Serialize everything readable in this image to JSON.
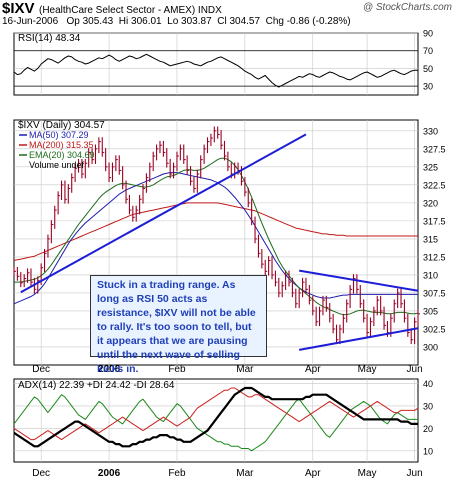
{
  "header": {
    "symbol": "$IXV",
    "name": "(HealthCare Select Sector - AMEX)  INDX",
    "source": "@ StockCharts.com",
    "date": "16-Jun-2006",
    "open": "Op 305.43",
    "high": "Hi 306.01",
    "low": "Lo 303.87",
    "close": "Cl 304.57",
    "change": "Chg -0.86 (-0.28%)"
  },
  "colors": {
    "grid": "#c8c8c8",
    "trend": "#1d1dd8",
    "ma50": "#1d1db0",
    "ma200": "#c01818",
    "ema20": "#1d6b1d",
    "price": "#990022",
    "pdi": "#1d8a1d",
    "mdi": "#cc2222"
  },
  "chart_data": [
    {
      "type": "line",
      "title": "RSI(14) 48.34",
      "ylim": [
        20,
        90
      ],
      "ticks": [
        90,
        70,
        50,
        30
      ],
      "levels": [
        70,
        30
      ],
      "series": [
        {
          "name": "RSI(14) 48.34",
          "values": [
            46,
            43,
            44,
            48,
            51,
            49,
            47,
            50,
            55,
            58,
            61,
            60,
            58,
            56,
            59,
            62,
            64,
            63,
            60,
            58,
            57,
            55,
            56,
            58,
            60,
            62,
            61,
            63,
            65,
            63,
            60,
            58,
            60,
            62,
            64,
            63,
            61,
            62,
            64,
            66,
            64,
            62,
            60,
            58,
            57,
            55,
            53,
            54,
            55,
            56,
            57,
            58,
            57,
            55,
            54,
            53,
            55,
            57,
            58,
            60,
            62,
            63,
            61,
            59,
            57,
            55,
            53,
            50,
            47,
            45,
            43,
            40,
            38,
            40,
            42,
            38,
            34,
            31,
            29,
            31,
            33,
            35,
            37,
            39,
            41,
            40,
            42,
            44,
            43,
            41,
            40,
            42,
            44,
            46,
            45,
            43,
            41,
            40,
            38,
            37,
            39,
            41,
            43,
            45,
            46,
            44,
            42,
            40,
            41,
            43,
            45,
            47,
            48,
            46,
            44,
            43,
            45,
            47,
            48,
            48
          ]
        }
      ]
    },
    {
      "type": "line",
      "title": "$IXV (Daily) 304.57",
      "ylim": [
        297.5,
        331.5
      ],
      "ticks": [
        330,
        327.5,
        325,
        322.5,
        320,
        317.5,
        315,
        312.5,
        310,
        307.5,
        305,
        302.5,
        300
      ],
      "x_labels": [
        "Dec",
        "2006",
        "Feb",
        "Mar",
        "Apr",
        "May",
        "Jun"
      ],
      "series": [
        {
          "name": "$IXV (Daily) 304.57",
          "values": [
            310.5,
            309.8,
            308.9,
            309.5,
            310.3,
            309.0,
            308.0,
            309.2,
            311.0,
            313.0,
            315.0,
            317.0,
            319.0,
            321.0,
            322.5,
            320.5,
            322.0,
            323.5,
            324.8,
            325.5,
            324.0,
            325.5,
            327.0,
            326.0,
            327.5,
            328.5,
            327.0,
            325.0,
            323.5,
            325.0,
            326.0,
            324.5,
            322.5,
            320.5,
            319.0,
            318.0,
            319.0,
            320.5,
            322.0,
            323.5,
            325.0,
            326.5,
            327.5,
            328.0,
            327.0,
            325.5,
            324.0,
            325.0,
            326.5,
            327.5,
            326.0,
            324.5,
            323.0,
            322.0,
            324.0,
            326.0,
            327.5,
            328.5,
            329.0,
            330.0,
            329.5,
            328.0,
            326.5,
            325.0,
            324.0,
            325.0,
            324.5,
            323.0,
            321.5,
            320.0,
            317.5,
            315.0,
            313.0,
            311.5,
            310.5,
            312.0,
            310.0,
            309.0,
            307.5,
            308.5,
            310.0,
            309.0,
            307.5,
            306.0,
            307.5,
            309.0,
            308.0,
            306.5,
            305.0,
            303.5,
            305.0,
            306.5,
            305.5,
            304.0,
            302.5,
            301.0,
            302.5,
            304.0,
            306.0,
            308.0,
            309.5,
            308.0,
            306.0,
            304.0,
            302.0,
            303.5,
            305.0,
            306.5,
            305.0,
            303.0,
            302.0,
            304.0,
            306.0,
            307.5,
            306.0,
            304.0,
            302.0,
            301.0,
            303.5,
            304.6
          ]
        },
        {
          "name": "MA(50) 307.29",
          "values": [
            306.0,
            306.2,
            306.4,
            306.6,
            306.8,
            307.0,
            307.3,
            307.7,
            308.2,
            308.8,
            309.5,
            310.3,
            311.1,
            311.9,
            312.7,
            313.5,
            314.3,
            315.0,
            315.6,
            316.2,
            316.7,
            317.2,
            317.6,
            318.0,
            318.4,
            318.8,
            319.2,
            319.6,
            320.0,
            320.4,
            320.8,
            321.2,
            321.5,
            321.8,
            322.0,
            322.2,
            322.4,
            322.6,
            322.8,
            323.0,
            323.2,
            323.4,
            323.6,
            323.8,
            324.0,
            324.1,
            324.2,
            324.2,
            324.2,
            324.1,
            324.0,
            323.9,
            323.8,
            323.7,
            323.6,
            323.5,
            323.4,
            323.3,
            323.2,
            323.0,
            322.8,
            322.5,
            322.2,
            321.8,
            321.3,
            320.8,
            320.2,
            319.6,
            319.0,
            318.3,
            317.6,
            316.8,
            316.0,
            315.2,
            314.4,
            313.6,
            312.8,
            312.0,
            311.3,
            310.6,
            310.0,
            309.5,
            309.0,
            308.6,
            308.2,
            307.9,
            307.6,
            307.4,
            307.2,
            307.0,
            306.9,
            306.8,
            306.8,
            306.8,
            306.9,
            307.0,
            307.1,
            307.2,
            307.2,
            307.3,
            307.3,
            307.3,
            307.3,
            307.3,
            307.3,
            307.3,
            307.3,
            307.3,
            307.3,
            307.3,
            307.3,
            307.3,
            307.3,
            307.3,
            307.3,
            307.3,
            307.3,
            307.3,
            307.3,
            307.3
          ]
        },
        {
          "name": "MA(200) 315.35",
          "values": [
            312.0,
            312.1,
            312.2,
            312.3,
            312.4,
            312.5,
            312.6,
            312.8,
            313.0,
            313.2,
            313.4,
            313.6,
            313.8,
            314.0,
            314.2,
            314.4,
            314.6,
            314.8,
            315.0,
            315.2,
            315.4,
            315.6,
            315.8,
            316.0,
            316.2,
            316.4,
            316.6,
            316.8,
            317.0,
            317.2,
            317.4,
            317.6,
            317.8,
            318.0,
            318.2,
            318.4,
            318.5,
            318.6,
            318.7,
            318.8,
            318.9,
            319.0,
            319.1,
            319.2,
            319.3,
            319.4,
            319.5,
            319.6,
            319.7,
            319.8,
            319.9,
            320.0,
            320.0,
            320.0,
            320.0,
            320.0,
            320.0,
            320.0,
            320.0,
            320.0,
            320.0,
            319.9,
            319.8,
            319.7,
            319.6,
            319.5,
            319.4,
            319.3,
            319.2,
            319.1,
            319.0,
            318.9,
            318.7,
            318.5,
            318.3,
            318.1,
            317.9,
            317.7,
            317.5,
            317.3,
            317.1,
            316.9,
            316.7,
            316.5,
            316.4,
            316.3,
            316.2,
            316.1,
            316.0,
            315.9,
            315.8,
            315.7,
            315.7,
            315.6,
            315.6,
            315.5,
            315.5,
            315.5,
            315.4,
            315.4,
            315.4,
            315.4,
            315.4,
            315.4,
            315.4,
            315.4,
            315.4,
            315.4,
            315.4,
            315.4,
            315.4,
            315.4,
            315.4,
            315.4,
            315.4,
            315.4,
            315.4,
            315.4,
            315.4,
            315.4
          ]
        },
        {
          "name": "EMA(20) 304.69",
          "values": [
            309.0,
            309.0,
            309.0,
            309.1,
            309.2,
            309.3,
            309.4,
            309.6,
            309.9,
            310.3,
            310.8,
            311.4,
            312.1,
            312.8,
            313.5,
            314.2,
            314.9,
            315.6,
            316.3,
            317.0,
            317.6,
            318.2,
            318.8,
            319.4,
            320.0,
            320.6,
            321.1,
            321.5,
            321.8,
            322.1,
            322.4,
            322.6,
            322.7,
            322.7,
            322.6,
            322.5,
            322.4,
            322.3,
            322.2,
            322.2,
            322.3,
            322.5,
            322.8,
            323.1,
            323.4,
            323.6,
            323.7,
            323.8,
            324.0,
            324.3,
            324.5,
            324.6,
            324.6,
            324.5,
            324.5,
            324.6,
            324.8,
            325.1,
            325.4,
            325.7,
            326.0,
            326.2,
            326.2,
            326.0,
            325.7,
            325.2,
            324.6,
            323.8,
            322.9,
            321.9,
            320.8,
            319.6,
            318.4,
            317.2,
            316.1,
            315.0,
            314.0,
            313.0,
            312.0,
            311.2,
            310.5,
            309.9,
            309.3,
            308.7,
            308.2,
            307.8,
            307.4,
            307.0,
            306.6,
            306.2,
            305.9,
            305.6,
            305.4,
            305.2,
            305.0,
            304.8,
            304.6,
            304.5,
            304.5,
            304.6,
            304.8,
            305.0,
            305.1,
            305.1,
            305.0,
            304.9,
            304.8,
            304.8,
            304.8,
            304.7,
            304.6,
            304.6,
            304.7,
            304.8,
            304.8,
            304.8,
            304.7,
            304.6,
            304.6,
            304.7
          ]
        }
      ]
    },
    {
      "type": "line",
      "title": "ADX(14) 22.39  +DI 24.42  -DI 28.64",
      "ylim": [
        5,
        42
      ],
      "ticks": [
        40,
        30,
        20,
        10
      ],
      "x_labels": [
        "Dec",
        "2006",
        "Feb",
        "Mar",
        "Apr",
        "May",
        "Jun"
      ],
      "series": [
        {
          "name": "ADX(14) 22.39",
          "values": [
            18,
            17,
            16,
            15,
            14,
            13,
            12,
            12,
            13,
            14,
            15,
            16,
            17,
            18,
            19,
            20,
            21,
            22,
            23,
            23,
            22,
            21,
            20,
            19,
            18,
            17,
            16,
            15,
            14,
            14,
            13,
            13,
            12,
            12,
            12,
            13,
            13,
            14,
            14,
            15,
            15,
            16,
            16,
            17,
            17,
            17,
            16,
            16,
            15,
            15,
            14,
            14,
            14,
            15,
            16,
            17,
            18,
            19,
            21,
            23,
            25,
            27,
            29,
            31,
            33,
            35,
            36,
            37,
            38,
            38,
            38,
            37,
            36,
            35,
            34,
            34,
            33,
            33,
            33,
            33,
            33,
            33,
            33,
            33,
            33,
            33,
            34,
            34,
            35,
            35,
            35,
            35,
            35,
            34,
            33,
            32,
            31,
            30,
            29,
            28,
            27,
            26,
            25,
            24,
            24,
            24,
            24,
            24,
            24,
            24,
            24,
            24,
            24,
            24,
            23,
            23,
            23,
            22,
            22,
            22
          ]
        },
        {
          "name": "+DI 24.42",
          "values": [
            22,
            24,
            26,
            28,
            30,
            32,
            34,
            33,
            31,
            29,
            27,
            29,
            31,
            33,
            35,
            34,
            32,
            30,
            28,
            26,
            25,
            24,
            26,
            28,
            30,
            32,
            31,
            29,
            27,
            25,
            24,
            23,
            22,
            24,
            26,
            28,
            30,
            32,
            33,
            31,
            29,
            27,
            25,
            24,
            23,
            25,
            27,
            29,
            31,
            30,
            28,
            26,
            24,
            22,
            20,
            19,
            18,
            17,
            16,
            15,
            14,
            14,
            13,
            13,
            12,
            12,
            12,
            11,
            11,
            11,
            10,
            11,
            12,
            13,
            14,
            16,
            18,
            20,
            22,
            24,
            26,
            28,
            30,
            32,
            33,
            31,
            29,
            27,
            25,
            23,
            21,
            19,
            17,
            16,
            18,
            20,
            22,
            24,
            26,
            28,
            29,
            30,
            31,
            32,
            31,
            30,
            28,
            26,
            24,
            23,
            22,
            24,
            26,
            27,
            26,
            25,
            24,
            24,
            24,
            24
          ]
        },
        {
          "name": "-DI 28.64",
          "values": [
            20,
            19,
            18,
            17,
            16,
            15,
            15,
            16,
            17,
            18,
            19,
            18,
            17,
            16,
            15,
            16,
            17,
            18,
            19,
            20,
            21,
            22,
            21,
            20,
            19,
            18,
            19,
            20,
            21,
            22,
            23,
            24,
            25,
            24,
            23,
            22,
            21,
            20,
            19,
            20,
            21,
            22,
            23,
            24,
            25,
            24,
            23,
            22,
            21,
            22,
            23,
            24,
            25,
            27,
            29,
            30,
            31,
            32,
            33,
            34,
            35,
            36,
            37,
            37,
            38,
            38,
            37,
            36,
            35,
            34,
            34,
            35,
            35,
            34,
            33,
            32,
            31,
            30,
            29,
            28,
            27,
            26,
            25,
            24,
            23,
            24,
            25,
            26,
            27,
            28,
            29,
            30,
            31,
            32,
            31,
            30,
            29,
            28,
            27,
            26,
            25,
            26,
            27,
            28,
            29,
            30,
            31,
            32,
            31,
            30,
            29,
            28,
            27,
            27,
            28,
            28,
            28,
            28,
            28,
            29
          ]
        }
      ]
    }
  ],
  "volume_label": "Volume undef",
  "annotation": "Stuck in a trading range.  As long as RSI 50 acts as resistance, $IXV will not be able to rally. It's too soon to tell, but it appears that we are pausing until the next wave of selling kicks in."
}
